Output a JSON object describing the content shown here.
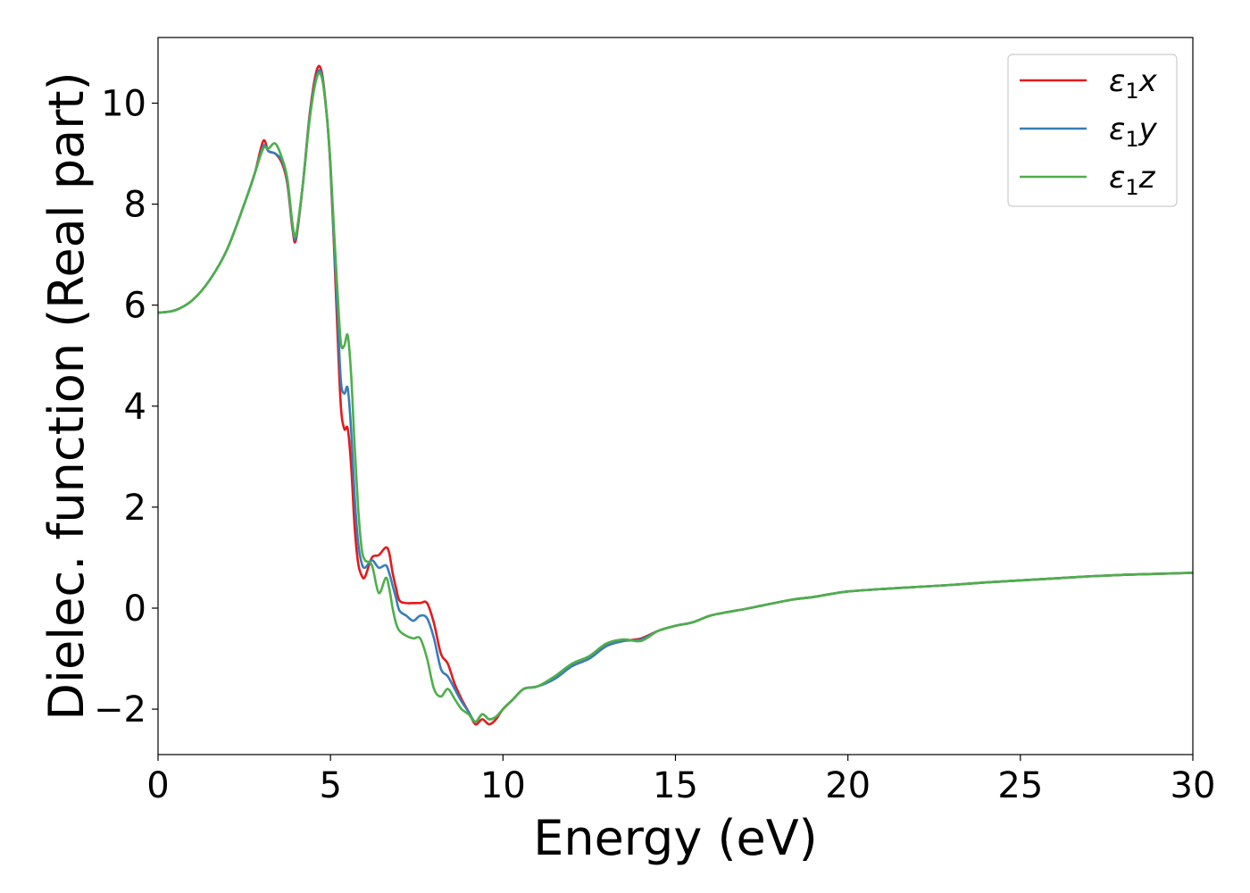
{
  "chart_data": {
    "type": "line",
    "xlabel": "Energy (eV)",
    "ylabel": "Dielec. function (Real part)",
    "xlim": [
      0,
      30
    ],
    "ylim": [
      -2.9,
      11.3
    ],
    "xticks": [
      0,
      5,
      10,
      15,
      20,
      25,
      30
    ],
    "yticks": [
      -2,
      0,
      2,
      4,
      6,
      8,
      10
    ],
    "xtick_labels": [
      "0",
      "5",
      "10",
      "15",
      "20",
      "25",
      "30"
    ],
    "ytick_labels": [
      "−2",
      "0",
      "2",
      "4",
      "6",
      "8",
      "10"
    ],
    "grid": false,
    "legend_position": "top-right",
    "series": [
      {
        "name": "ε1x",
        "legend": {
          "base": "ε",
          "sub": "1",
          "tail": "x"
        },
        "color": "#e41a1c",
        "x": [
          0,
          0.5,
          1.0,
          1.5,
          2.0,
          2.5,
          2.8,
          3.05,
          3.2,
          3.4,
          3.6,
          3.75,
          3.9,
          4.0,
          4.2,
          4.4,
          4.6,
          4.75,
          4.9,
          5.0,
          5.1,
          5.2,
          5.3,
          5.4,
          5.5,
          5.6,
          5.7,
          5.8,
          5.9,
          6.0,
          6.2,
          6.4,
          6.6,
          6.7,
          6.8,
          6.9,
          7.0,
          7.2,
          7.4,
          7.6,
          7.8,
          8.0,
          8.2,
          8.4,
          8.6,
          8.8,
          9.0,
          9.2,
          9.4,
          9.6,
          9.8,
          10.0,
          10.3,
          10.6,
          11.0,
          11.5,
          12.0,
          12.5,
          13.0,
          13.5,
          14.0,
          14.5,
          15.0,
          15.5,
          16.0,
          16.5,
          17.0,
          17.5,
          18.0,
          18.5,
          19.0,
          19.5,
          20.0,
          21.0,
          22.0,
          23.0,
          24.0,
          25.0,
          26.0,
          27.0,
          28.0,
          29.0,
          30.0
        ],
        "y": [
          5.85,
          5.9,
          6.1,
          6.5,
          7.1,
          8.0,
          8.6,
          9.25,
          9.05,
          9.0,
          8.8,
          8.4,
          7.5,
          7.3,
          8.4,
          9.8,
          10.65,
          10.6,
          9.7,
          8.7,
          7.2,
          5.5,
          4.0,
          3.55,
          3.55,
          2.8,
          1.6,
          0.9,
          0.65,
          0.62,
          1.0,
          1.05,
          1.2,
          1.1,
          0.7,
          0.4,
          0.15,
          0.1,
          0.1,
          0.1,
          0.1,
          -0.3,
          -0.9,
          -1.1,
          -1.5,
          -1.8,
          -2.05,
          -2.3,
          -2.2,
          -2.3,
          -2.2,
          -2.0,
          -1.8,
          -1.6,
          -1.55,
          -1.4,
          -1.15,
          -1.0,
          -0.75,
          -0.65,
          -0.6,
          -0.45,
          -0.35,
          -0.28,
          -0.15,
          -0.08,
          -0.02,
          0.05,
          0.12,
          0.18,
          0.22,
          0.28,
          0.33,
          0.38,
          0.42,
          0.46,
          0.51,
          0.55,
          0.59,
          0.63,
          0.66,
          0.68,
          0.7
        ]
      },
      {
        "name": "ε1y",
        "legend": {
          "base": "ε",
          "sub": "1",
          "tail": "y"
        },
        "color": "#377eb8",
        "x": [
          0,
          0.5,
          1.0,
          1.5,
          2.0,
          2.5,
          2.8,
          3.05,
          3.2,
          3.4,
          3.6,
          3.75,
          3.9,
          4.0,
          4.2,
          4.4,
          4.6,
          4.75,
          4.9,
          5.0,
          5.1,
          5.2,
          5.3,
          5.4,
          5.5,
          5.6,
          5.7,
          5.8,
          5.9,
          6.0,
          6.2,
          6.4,
          6.6,
          6.7,
          6.8,
          6.9,
          7.0,
          7.2,
          7.4,
          7.6,
          7.8,
          8.0,
          8.2,
          8.4,
          8.6,
          8.8,
          9.0,
          9.2,
          9.4,
          9.6,
          9.8,
          10.0,
          10.3,
          10.6,
          11.0,
          11.5,
          12.0,
          12.5,
          13.0,
          13.5,
          14.0,
          14.5,
          15.0,
          15.5,
          16.0,
          16.5,
          17.0,
          17.5,
          18.0,
          18.5,
          19.0,
          19.5,
          20.0,
          21.0,
          22.0,
          23.0,
          24.0,
          25.0,
          26.0,
          27.0,
          28.0,
          29.0,
          30.0
        ],
        "y": [
          5.85,
          5.9,
          6.1,
          6.5,
          7.1,
          8.0,
          8.6,
          9.15,
          9.05,
          9.0,
          8.85,
          8.45,
          7.55,
          7.35,
          8.4,
          9.75,
          10.55,
          10.55,
          9.7,
          8.75,
          7.3,
          5.9,
          4.5,
          4.25,
          4.35,
          3.5,
          2.2,
          1.3,
          0.9,
          0.8,
          0.95,
          0.8,
          0.85,
          0.7,
          0.45,
          0.2,
          -0.05,
          -0.15,
          -0.25,
          -0.15,
          -0.2,
          -0.6,
          -1.2,
          -1.35,
          -1.6,
          -1.85,
          -2.05,
          -2.25,
          -2.1,
          -2.2,
          -2.15,
          -2.0,
          -1.8,
          -1.6,
          -1.55,
          -1.4,
          -1.15,
          -1.0,
          -0.75,
          -0.65,
          -0.62,
          -0.45,
          -0.35,
          -0.28,
          -0.15,
          -0.08,
          -0.02,
          0.05,
          0.12,
          0.18,
          0.22,
          0.28,
          0.33,
          0.38,
          0.42,
          0.46,
          0.51,
          0.55,
          0.59,
          0.63,
          0.66,
          0.68,
          0.7
        ]
      },
      {
        "name": "ε1z",
        "legend": {
          "base": "ε",
          "sub": "1",
          "tail": "z"
        },
        "color": "#4daf4a",
        "x": [
          0,
          0.5,
          1.0,
          1.5,
          2.0,
          2.5,
          2.8,
          3.05,
          3.2,
          3.4,
          3.6,
          3.75,
          3.9,
          4.0,
          4.2,
          4.4,
          4.6,
          4.75,
          4.9,
          5.0,
          5.1,
          5.2,
          5.3,
          5.4,
          5.5,
          5.6,
          5.7,
          5.8,
          5.9,
          6.0,
          6.2,
          6.4,
          6.6,
          6.7,
          6.8,
          6.9,
          7.0,
          7.2,
          7.4,
          7.6,
          7.8,
          8.0,
          8.2,
          8.4,
          8.6,
          8.8,
          9.0,
          9.2,
          9.4,
          9.6,
          9.8,
          10.0,
          10.3,
          10.6,
          11.0,
          11.5,
          12.0,
          12.5,
          13.0,
          13.5,
          14.0,
          14.5,
          15.0,
          15.5,
          16.0,
          16.5,
          17.0,
          17.5,
          18.0,
          18.5,
          19.0,
          19.5,
          20.0,
          21.0,
          22.0,
          23.0,
          24.0,
          25.0,
          26.0,
          27.0,
          28.0,
          29.0,
          30.0
        ],
        "y": [
          5.85,
          5.9,
          6.1,
          6.5,
          7.1,
          8.0,
          8.6,
          9.1,
          9.1,
          9.2,
          8.9,
          8.5,
          7.6,
          7.4,
          8.4,
          9.7,
          10.5,
          10.5,
          9.7,
          8.8,
          7.5,
          6.3,
          5.25,
          5.2,
          5.4,
          4.6,
          3.2,
          2.0,
          1.2,
          0.95,
          0.85,
          0.3,
          0.6,
          0.4,
          0.0,
          -0.3,
          -0.45,
          -0.55,
          -0.6,
          -0.6,
          -1.0,
          -1.6,
          -1.75,
          -1.6,
          -1.8,
          -2.0,
          -2.1,
          -2.25,
          -2.1,
          -2.2,
          -2.15,
          -2.0,
          -1.8,
          -1.6,
          -1.55,
          -1.35,
          -1.1,
          -0.95,
          -0.7,
          -0.62,
          -0.65,
          -0.45,
          -0.35,
          -0.28,
          -0.15,
          -0.08,
          -0.02,
          0.05,
          0.12,
          0.18,
          0.22,
          0.28,
          0.33,
          0.38,
          0.42,
          0.46,
          0.51,
          0.55,
          0.59,
          0.63,
          0.66,
          0.68,
          0.7
        ]
      }
    ]
  }
}
